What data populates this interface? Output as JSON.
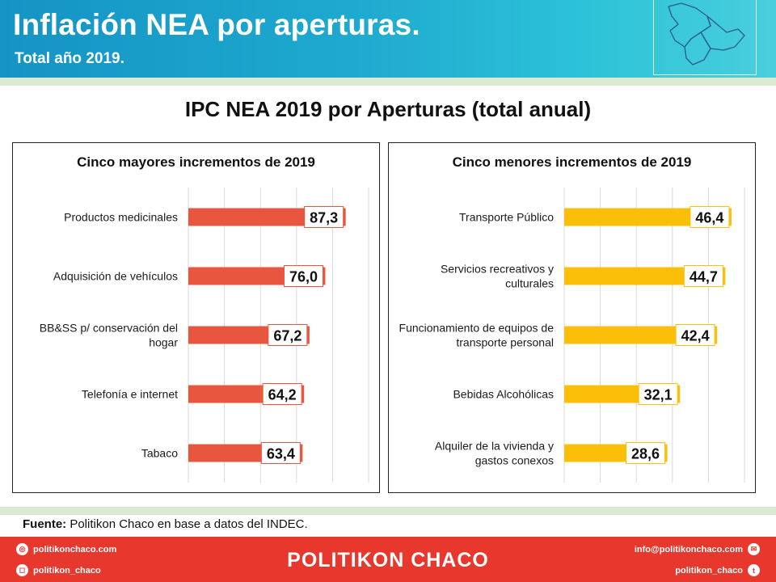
{
  "header": {
    "title": "Inflación NEA por aperturas.",
    "subtitle": "Total año 2019."
  },
  "main_title": "IPC NEA 2019 por Aperturas  (total anual)",
  "source": {
    "label": "Fuente:",
    "text": " Politikon Chaco en base a datos del INDEC."
  },
  "footer": {
    "brand": "POLITIKON CHACO",
    "website": "politikonchaco.com",
    "instagram": "politikon_chaco",
    "email": "info@politikonchaco.com",
    "twitter": "politikon_chaco",
    "website_icon": "dribbble-icon",
    "instagram_icon": "instagram-icon",
    "email_icon": "mail-icon",
    "twitter_icon": "twitter-icon"
  },
  "colors": {
    "header_bg": "#1ea9cf",
    "accent_red": "#e8563f",
    "accent_yellow": "#fbbf0a",
    "footer_bg": "#e8372c",
    "band_green": "#dcead4"
  },
  "chart_data": [
    {
      "type": "bar",
      "orientation": "horizontal",
      "title": "Cinco mayores incrementos de 2019",
      "categories": [
        "Productos medicinales",
        "Adquisición de vehículos",
        "BB&SS p/ conservación del hogar",
        "Telefonía e internet",
        "Tabaco"
      ],
      "values": [
        87.3,
        76.0,
        67.2,
        64.2,
        63.4
      ],
      "value_labels": [
        "87,3",
        "76,0",
        "67,2",
        "64,2",
        "63,4"
      ],
      "color": "#e8563f",
      "xlim": [
        0,
        100
      ],
      "grid": true
    },
    {
      "type": "bar",
      "orientation": "horizontal",
      "title": "Cinco menores incrementos de 2019",
      "categories": [
        "Transporte Público",
        "Servicios recreativos y culturales",
        "Funcionamiento de equipos de transporte personal",
        "Bebidas Alcohólicas",
        "Alquiler de la vivienda y gastos conexos"
      ],
      "values": [
        46.4,
        44.7,
        42.4,
        32.1,
        28.6
      ],
      "value_labels": [
        "46,4",
        "44,7",
        "42,4",
        "32,1",
        "28,6"
      ],
      "color": "#fbbf0a",
      "xlim": [
        0,
        50
      ],
      "grid": true
    }
  ]
}
